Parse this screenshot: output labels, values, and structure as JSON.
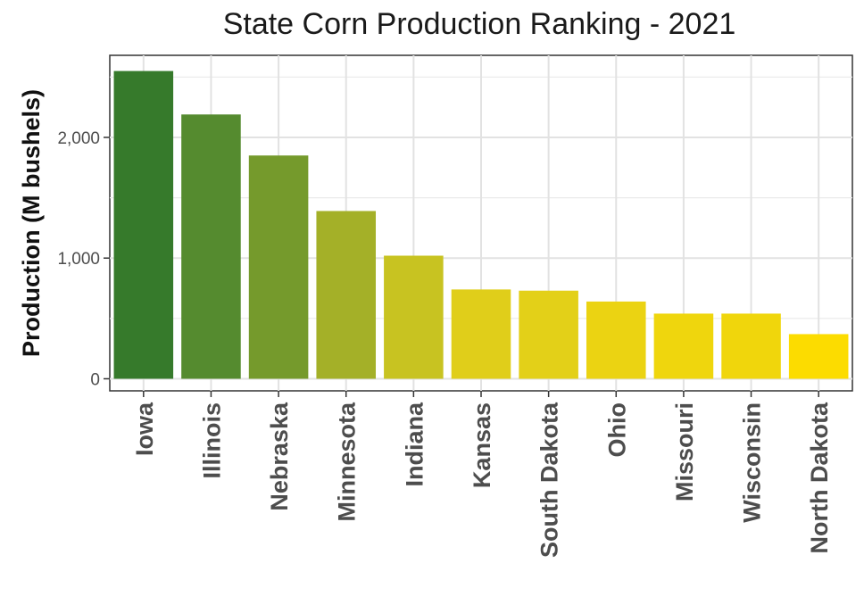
{
  "chart_data": {
    "type": "bar",
    "title": "State Corn Production Ranking - 2021",
    "xlabel": "",
    "ylabel": "Production (M bushels)",
    "categories": [
      "Iowa",
      "Illinois",
      "Nebraska",
      "Minnesota",
      "Indiana",
      "Kansas",
      "South Dakota",
      "Ohio",
      "Missouri",
      "Wisconsin",
      "North Dakota"
    ],
    "values": [
      2550,
      2190,
      1850,
      1390,
      1020,
      740,
      730,
      640,
      540,
      540,
      370
    ],
    "yticks": [
      0,
      1000,
      2000
    ],
    "ytick_labels": [
      "0",
      "1,000",
      "2,000"
    ],
    "ylim": [
      -100,
      2680
    ],
    "grid": true,
    "legend": "none",
    "colors": [
      "#367A2B",
      "#558B2F",
      "#759A2C",
      "#A4B028",
      "#C8C321",
      "#E0CE1A",
      "#E3D018",
      "#EBD312",
      "#EFD60D",
      "#F0D60C",
      "#FCDC00"
    ]
  }
}
